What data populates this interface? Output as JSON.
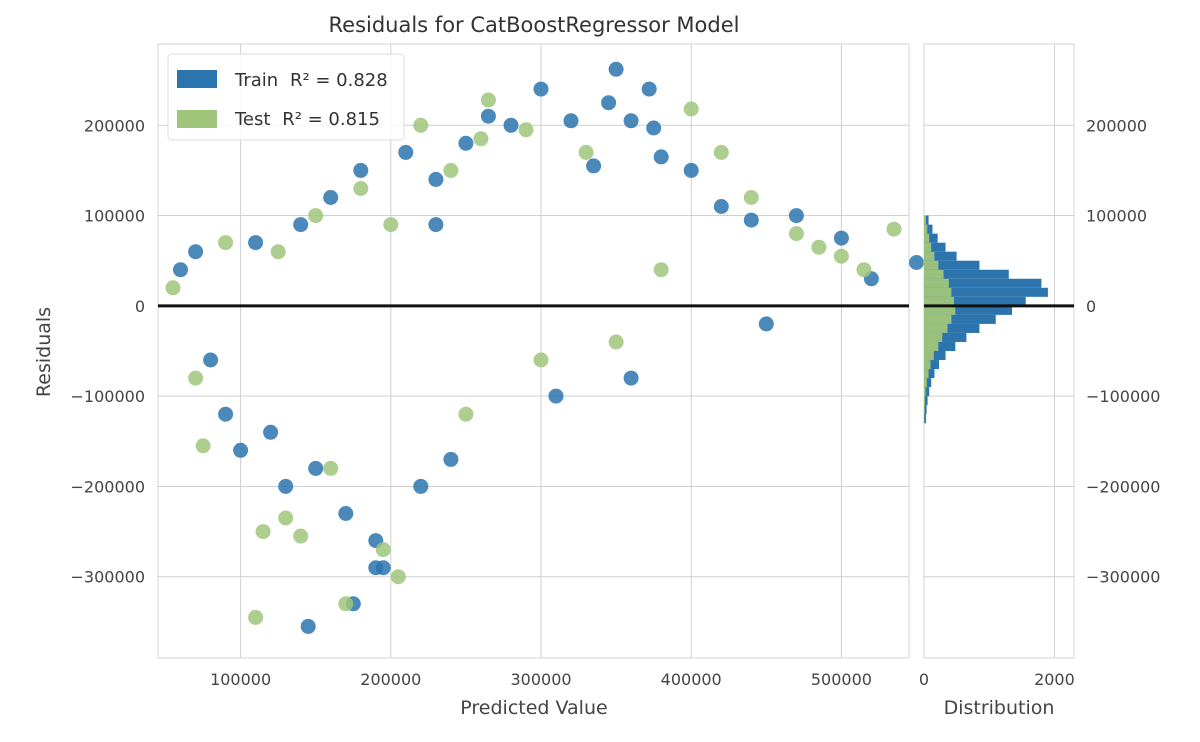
{
  "chart_data": {
    "type": "scatter",
    "title": "Residuals for CatBoostRegressor Model",
    "xlabel": "Predicted Value",
    "ylabel": "Residuals",
    "xlim": [
      45000,
      545000
    ],
    "ylim": [
      -390000,
      290000
    ],
    "x_ticks": [
      100000,
      200000,
      300000,
      400000,
      500000
    ],
    "y_ticks": [
      -300000,
      -200000,
      -100000,
      0,
      100000,
      200000
    ],
    "x_tick_labels": [
      "100000",
      "200000",
      "300000",
      "400000",
      "500000"
    ],
    "y_tick_labels": [
      "−300000",
      "−200000",
      "−100000",
      "0",
      "100000",
      "200000"
    ],
    "grid": true,
    "legend_position": "top-left",
    "zero_line": 0,
    "series": [
      {
        "name": "Train",
        "r2_label": "R² = 0.828",
        "color": "#2c74ae",
        "points": [
          [
            60000,
            40000
          ],
          [
            70000,
            60000
          ],
          [
            80000,
            -60000
          ],
          [
            90000,
            -120000
          ],
          [
            100000,
            -160000
          ],
          [
            110000,
            70000
          ],
          [
            120000,
            -140000
          ],
          [
            130000,
            -200000
          ],
          [
            140000,
            90000
          ],
          [
            150000,
            -180000
          ],
          [
            160000,
            120000
          ],
          [
            170000,
            -230000
          ],
          [
            180000,
            150000
          ],
          [
            190000,
            -260000
          ],
          [
            195000,
            -290000
          ],
          [
            210000,
            170000
          ],
          [
            220000,
            -200000
          ],
          [
            230000,
            140000
          ],
          [
            240000,
            -170000
          ],
          [
            250000,
            180000
          ],
          [
            265000,
            210000
          ],
          [
            280000,
            200000
          ],
          [
            300000,
            240000
          ],
          [
            320000,
            205000
          ],
          [
            335000,
            155000
          ],
          [
            345000,
            225000
          ],
          [
            350000,
            262000
          ],
          [
            360000,
            205000
          ],
          [
            372000,
            240000
          ],
          [
            375000,
            197000
          ],
          [
            380000,
            165000
          ],
          [
            400000,
            150000
          ],
          [
            420000,
            110000
          ],
          [
            440000,
            95000
          ],
          [
            470000,
            100000
          ],
          [
            500000,
            75000
          ],
          [
            520000,
            30000
          ],
          [
            550000,
            48000
          ],
          [
            145000,
            -355000
          ],
          [
            175000,
            -330000
          ],
          [
            190000,
            -290000
          ],
          [
            230000,
            90000
          ],
          [
            310000,
            -100000
          ],
          [
            360000,
            -80000
          ],
          [
            450000,
            -20000
          ]
        ]
      },
      {
        "name": "Test",
        "r2_label": "R² = 0.815",
        "color": "#9fc57a",
        "points": [
          [
            55000,
            20000
          ],
          [
            70000,
            -80000
          ],
          [
            75000,
            -155000
          ],
          [
            90000,
            70000
          ],
          [
            110000,
            -345000
          ],
          [
            115000,
            -250000
          ],
          [
            130000,
            -235000
          ],
          [
            140000,
            -255000
          ],
          [
            150000,
            100000
          ],
          [
            160000,
            -180000
          ],
          [
            170000,
            -330000
          ],
          [
            180000,
            130000
          ],
          [
            195000,
            -270000
          ],
          [
            205000,
            -300000
          ],
          [
            220000,
            200000
          ],
          [
            240000,
            150000
          ],
          [
            260000,
            185000
          ],
          [
            265000,
            228000
          ],
          [
            290000,
            195000
          ],
          [
            330000,
            170000
          ],
          [
            400000,
            218000
          ],
          [
            420000,
            170000
          ],
          [
            440000,
            120000
          ],
          [
            470000,
            80000
          ],
          [
            485000,
            65000
          ],
          [
            500000,
            55000
          ],
          [
            515000,
            40000
          ],
          [
            535000,
            85000
          ],
          [
            250000,
            -120000
          ],
          [
            300000,
            -60000
          ],
          [
            350000,
            -40000
          ],
          [
            380000,
            40000
          ],
          [
            200000,
            90000
          ],
          [
            125000,
            60000
          ]
        ]
      }
    ],
    "distribution": {
      "xlabel": "Distribution",
      "x_ticks": [
        0,
        2000
      ],
      "x_tick_labels": [
        "0",
        "2000"
      ],
      "xlim": [
        0,
        2300
      ],
      "y_tick_labels": [
        "−300000",
        "−200000",
        "−100000",
        "0",
        "100000",
        "200000"
      ],
      "bin_width": 10000,
      "bins": [
        {
          "center": -125000,
          "train": 30,
          "test": 5
        },
        {
          "center": -115000,
          "train": 40,
          "test": 10
        },
        {
          "center": -105000,
          "train": 55,
          "test": 15
        },
        {
          "center": -95000,
          "train": 80,
          "test": 25
        },
        {
          "center": -85000,
          "train": 110,
          "test": 45
        },
        {
          "center": -75000,
          "train": 160,
          "test": 70
        },
        {
          "center": -65000,
          "train": 230,
          "test": 100
        },
        {
          "center": -55000,
          "train": 330,
          "test": 150
        },
        {
          "center": -45000,
          "train": 480,
          "test": 220
        },
        {
          "center": -35000,
          "train": 650,
          "test": 280
        },
        {
          "center": -25000,
          "train": 850,
          "test": 360
        },
        {
          "center": -15000,
          "train": 1100,
          "test": 420
        },
        {
          "center": -5000,
          "train": 1350,
          "test": 480
        },
        {
          "center": 5000,
          "train": 1560,
          "test": 460
        },
        {
          "center": 15000,
          "train": 1900,
          "test": 420
        },
        {
          "center": 25000,
          "train": 1800,
          "test": 380
        },
        {
          "center": 35000,
          "train": 1300,
          "test": 300
        },
        {
          "center": 45000,
          "train": 850,
          "test": 220
        },
        {
          "center": 55000,
          "train": 500,
          "test": 160
        },
        {
          "center": 65000,
          "train": 330,
          "test": 110
        },
        {
          "center": 75000,
          "train": 210,
          "test": 80
        },
        {
          "center": 85000,
          "train": 130,
          "test": 50
        },
        {
          "center": 95000,
          "train": 70,
          "test": 30
        }
      ]
    }
  }
}
